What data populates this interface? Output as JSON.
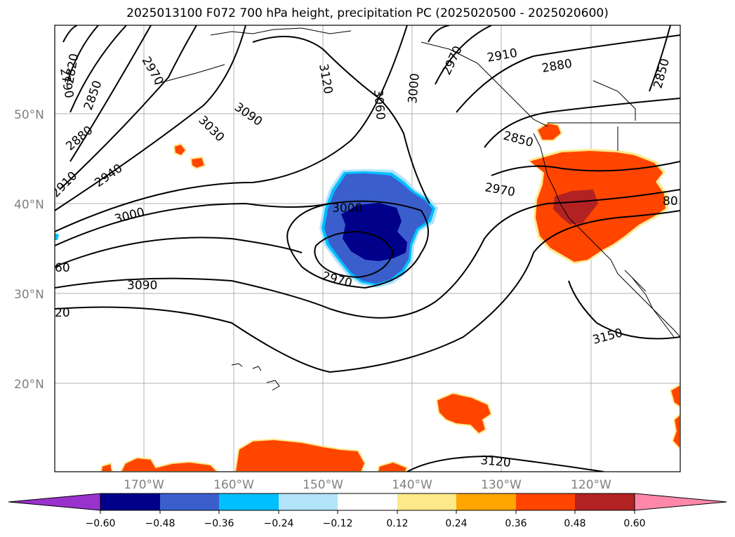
{
  "title": "2025013100 F072 700 hPa height, precipitation PC (2025020500 - 2025020600)",
  "map": {
    "lat_labels": [
      "50°N",
      "40°N",
      "30°N",
      "20°N"
    ],
    "lon_labels": [
      "170°W",
      "160°W",
      "150°W",
      "140°W",
      "130°W",
      "120°W"
    ],
    "contour_labels": {
      "c2790": "2790",
      "c2820": "2820",
      "c2850a": "2850",
      "c2880a": "2880",
      "c2910a": "2910",
      "c2940": "2940",
      "c2970a": "2970",
      "c3000a": "3000",
      "c3030": "3030",
      "c3090a": "3090",
      "c3120a": "3120",
      "c3060": "3060",
      "c3000b": "3000",
      "c2970b": "2970",
      "c2910b": "2910",
      "c2880b": "2880",
      "c2850b": "2850",
      "c2850c": "2850",
      "c2970c": "2970",
      "c3000c": "3000",
      "c2970d": "2970",
      "c3090b": "3090",
      "c60": "60",
      "c20": "20",
      "c80": "80",
      "c3150": "3150",
      "c3120b": "3120"
    },
    "anomaly_colors": {
      "dark_blue": "#00008b",
      "blue": "#3a5fcd",
      "light_blue": "#00bfff",
      "pale_blue": "#b2e4fa",
      "orange_red": "#ff4500",
      "dark_red": "#b22222",
      "yellow": "#fde88a",
      "orange": "#ffa500"
    }
  },
  "colorbar": {
    "ticks": [
      "−0.60",
      "−0.48",
      "−0.36",
      "−0.24",
      "−0.12",
      "0.12",
      "0.24",
      "0.36",
      "0.48",
      "0.60"
    ],
    "colors": [
      "#9932cc",
      "#00008b",
      "#3a5fcd",
      "#00bfff",
      "#b2e4fa",
      "#ffffff",
      "#fde88a",
      "#ffa500",
      "#ff4500",
      "#b22222",
      "#ff88aa"
    ]
  }
}
